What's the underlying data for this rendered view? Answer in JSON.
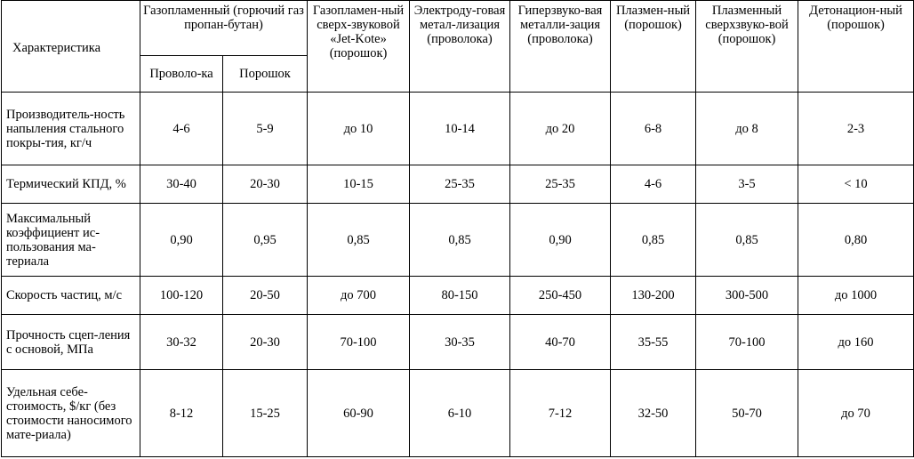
{
  "table": {
    "header": {
      "characteristic": "Характеристика",
      "gas_flame": "Газопламенный (горючий газ пропан-бутан)",
      "gas_flame_sub": [
        "Проволо-ка",
        "Порошок"
      ],
      "methods": [
        "Газопламен-ный сверх-звуковой «Jet-Kote» (порошок)",
        "Электроду-говая метал-лизация (проволока)",
        "Гиперзвуко-вая металли-зация (проволока)",
        "Плазмен-ный (порошок)",
        "Плазменный сверхзвуко-вой (порошок)",
        "Детонацион-ный (порошок)"
      ]
    },
    "rows": [
      {
        "label": "Производитель-ность напыления стального покры-тия, кг/ч",
        "values": [
          "4-6",
          "5-9",
          "до 10",
          "10-14",
          "до 20",
          "6-8",
          "до 8",
          "2-3"
        ]
      },
      {
        "label": "Термический КПД, %",
        "values": [
          "30-40",
          "20-30",
          "10-15",
          "25-35",
          "25-35",
          "4-6",
          "3-5",
          "< 10"
        ]
      },
      {
        "label": "Максимальный коэффициент ис-пользования ма-териала",
        "values": [
          "0,90",
          "0,95",
          "0,85",
          "0,85",
          "0,90",
          "0,85",
          "0,85",
          "0,80"
        ]
      },
      {
        "label": "Скорость частиц, м/с",
        "values": [
          "100-120",
          "20-50",
          "до 700",
          "80-150",
          "250-450",
          "130-200",
          "300-500",
          "до 1000"
        ]
      },
      {
        "label": "Прочность сцеп-ления с основой, МПа",
        "values": [
          "30-32",
          "20-30",
          "70-100",
          "30-35",
          "40-70",
          "35-55",
          "70-100",
          "до 160"
        ]
      },
      {
        "label": "Удельная себе-стоимость, $/кг (без стоимости наносимого мате-риала)",
        "values": [
          "8-12",
          "15-25",
          "60-90",
          "6-10",
          "7-12",
          "32-50",
          "50-70",
          "до 70"
        ]
      }
    ]
  }
}
